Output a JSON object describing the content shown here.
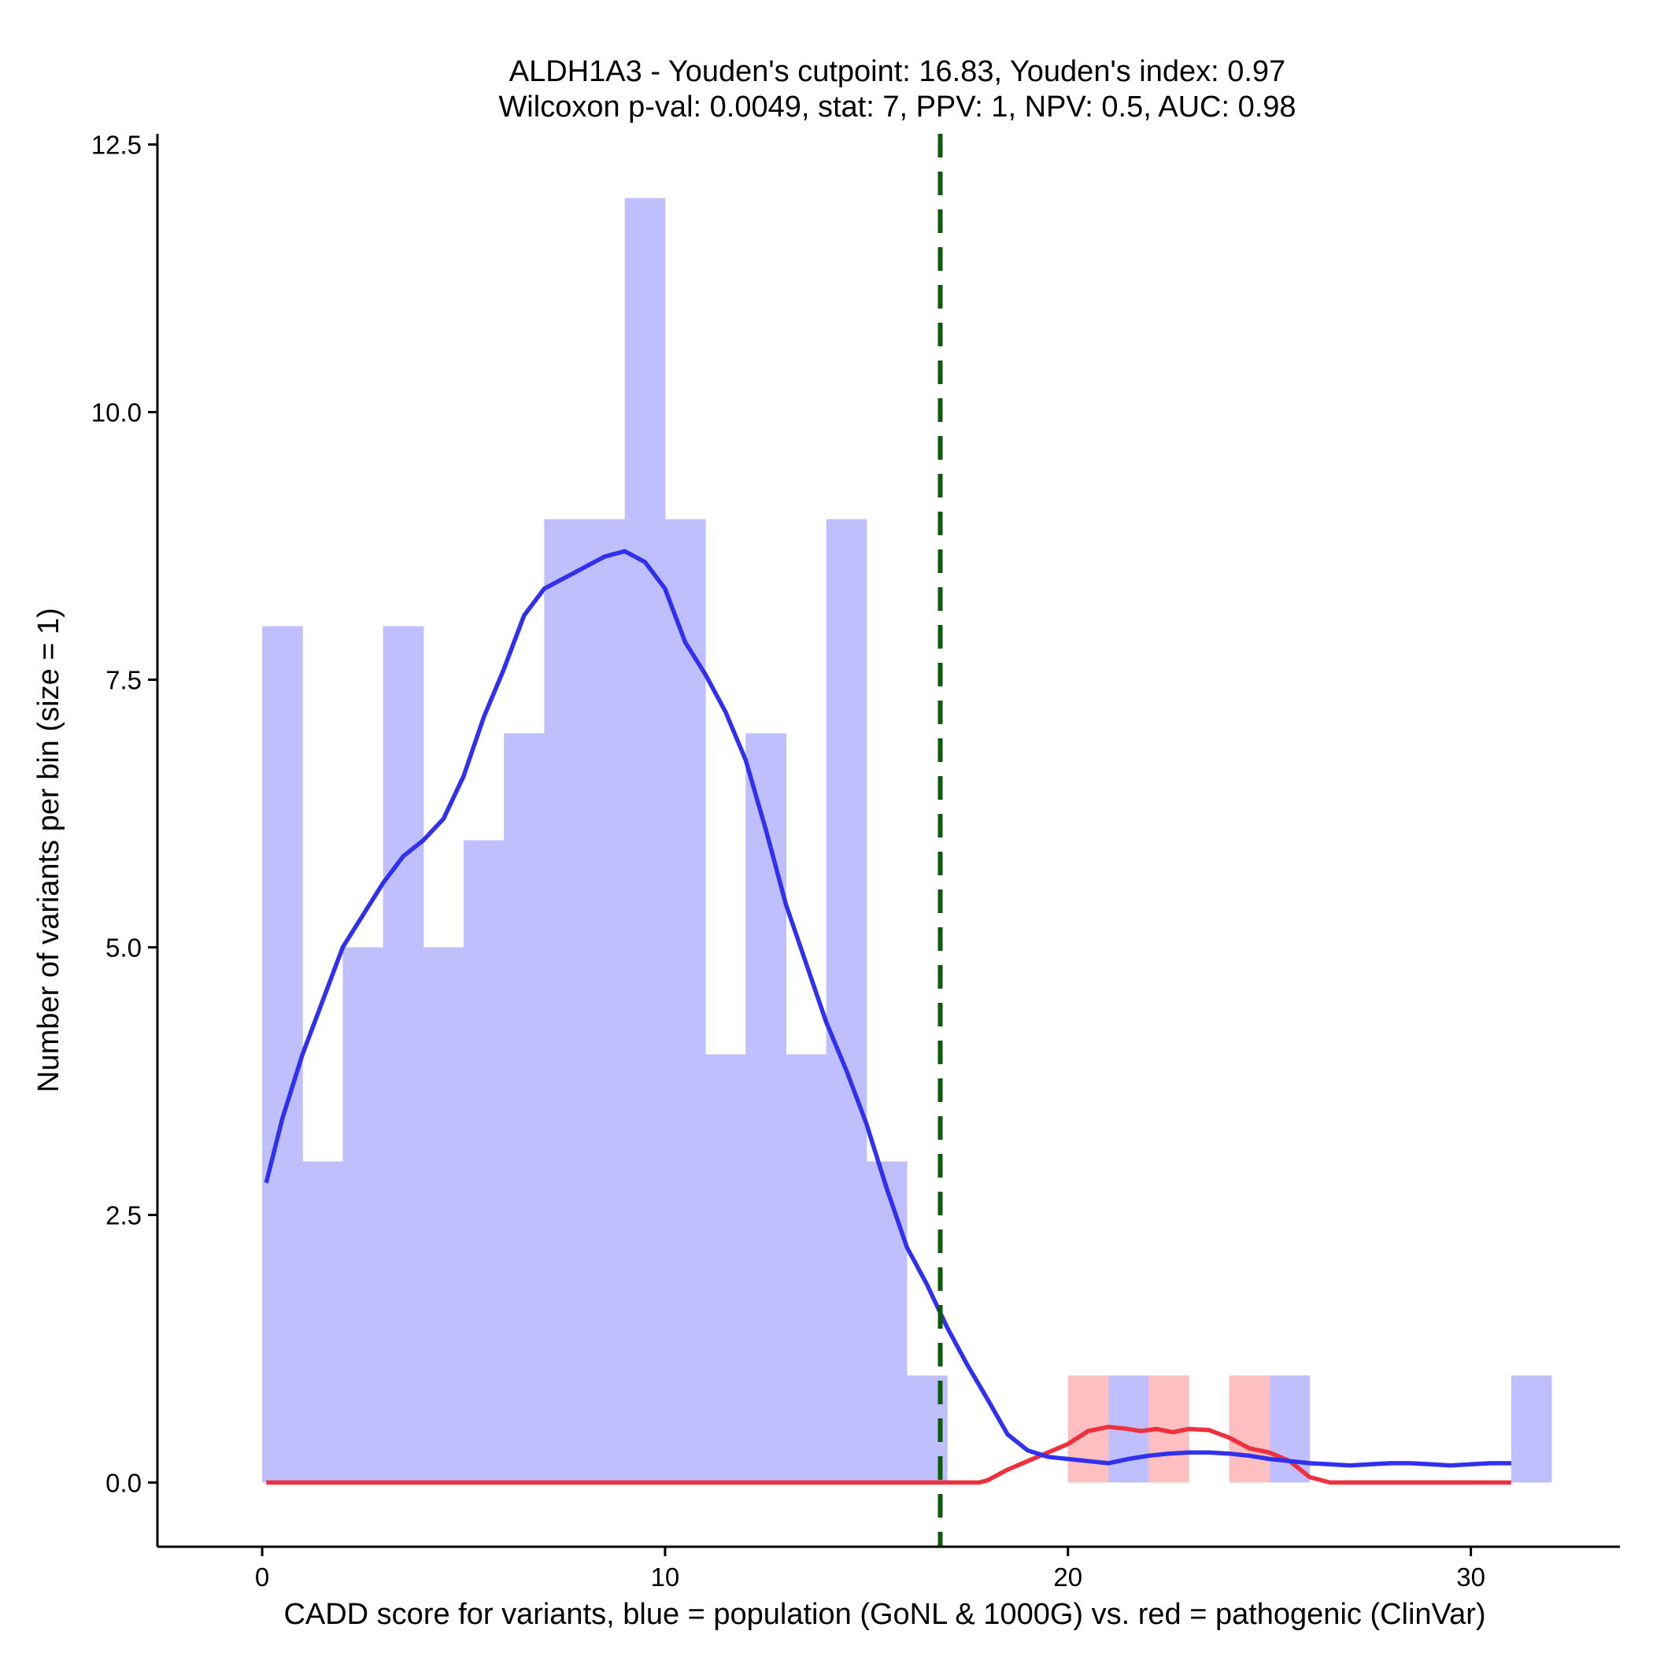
{
  "chart_data": {
    "type": "bar",
    "title_line1": "ALDH1A3 - Youden's cutpoint: 16.83, Youden's index: 0.97",
    "title_line2": "Wilcoxon p-val: 0.0049, stat: 7, PPV: 1, NPV: 0.5, AUC: 0.98",
    "xlabel": "CADD score for variants, blue = population (GoNL & 1000G) vs. red = pathogenic (ClinVar)",
    "ylabel": "Number of variants per bin (size = 1)",
    "xlim": [
      -2.6,
      33.7
    ],
    "ylim": [
      -0.6,
      12.6
    ],
    "x_ticks": [
      0,
      10,
      20,
      30
    ],
    "x_tick_labels": [
      "0",
      "10",
      "20",
      "30"
    ],
    "y_ticks": [
      0,
      2.5,
      5,
      7.5,
      10,
      12.5
    ],
    "y_tick_labels": [
      "0.0",
      "2.5",
      "5.0",
      "7.5",
      "10.0",
      "12.5"
    ],
    "bin_width": 1,
    "cutpoint": 16.83,
    "colors": {
      "population_bar": "#bfbffd",
      "pathogenic_bar": "#fdbfbf",
      "population_line": "#3030ee",
      "pathogenic_line": "#f0303c",
      "cutpoint_line": "#0b5b0b"
    },
    "series": [
      {
        "name": "population (GoNL & 1000G)",
        "bins": [
          [
            0,
            8
          ],
          [
            1,
            3
          ],
          [
            2,
            5
          ],
          [
            3,
            8
          ],
          [
            4,
            5
          ],
          [
            5,
            6
          ],
          [
            6,
            7
          ],
          [
            7,
            9
          ],
          [
            8,
            9
          ],
          [
            9,
            12
          ],
          [
            10,
            9
          ],
          [
            11,
            4
          ],
          [
            12,
            7
          ],
          [
            13,
            4
          ],
          [
            14,
            9
          ],
          [
            15,
            3
          ],
          [
            16,
            1
          ],
          [
            21,
            1
          ],
          [
            25,
            1
          ],
          [
            31,
            1
          ]
        ]
      },
      {
        "name": "pathogenic (ClinVar)",
        "bins": [
          [
            20,
            1
          ],
          [
            22,
            1
          ],
          [
            24,
            1
          ]
        ]
      }
    ],
    "density_population": [
      [
        0.1,
        2.8
      ],
      [
        0.5,
        3.4
      ],
      [
        1.0,
        4.0
      ],
      [
        1.5,
        4.5
      ],
      [
        2.0,
        5.0
      ],
      [
        2.5,
        5.3
      ],
      [
        3.0,
        5.6
      ],
      [
        3.5,
        5.85
      ],
      [
        4.0,
        6.0
      ],
      [
        4.5,
        6.2
      ],
      [
        5.0,
        6.6
      ],
      [
        5.5,
        7.15
      ],
      [
        6.0,
        7.6
      ],
      [
        6.5,
        8.1
      ],
      [
        7.0,
        8.35
      ],
      [
        7.5,
        8.45
      ],
      [
        8.0,
        8.55
      ],
      [
        8.5,
        8.65
      ],
      [
        9.0,
        8.7
      ],
      [
        9.5,
        8.6
      ],
      [
        10.0,
        8.35
      ],
      [
        10.5,
        7.85
      ],
      [
        11.0,
        7.55
      ],
      [
        11.5,
        7.2
      ],
      [
        12.0,
        6.75
      ],
      [
        12.5,
        6.1
      ],
      [
        13.0,
        5.4
      ],
      [
        13.5,
        4.85
      ],
      [
        14.0,
        4.3
      ],
      [
        14.5,
        3.85
      ],
      [
        15.0,
        3.35
      ],
      [
        15.5,
        2.75
      ],
      [
        16.0,
        2.2
      ],
      [
        16.5,
        1.85
      ],
      [
        17.0,
        1.45
      ],
      [
        17.5,
        1.1
      ],
      [
        18.0,
        0.78
      ],
      [
        18.5,
        0.45
      ],
      [
        19.0,
        0.3
      ],
      [
        19.5,
        0.24
      ],
      [
        20.0,
        0.22
      ],
      [
        20.5,
        0.2
      ],
      [
        21.0,
        0.18
      ],
      [
        21.5,
        0.22
      ],
      [
        22.0,
        0.25
      ],
      [
        22.5,
        0.27
      ],
      [
        23.0,
        0.28
      ],
      [
        23.5,
        0.28
      ],
      [
        24.0,
        0.27
      ],
      [
        24.5,
        0.25
      ],
      [
        25.0,
        0.22
      ],
      [
        25.5,
        0.2
      ],
      [
        26.0,
        0.18
      ],
      [
        26.5,
        0.17
      ],
      [
        27.0,
        0.16
      ],
      [
        27.5,
        0.17
      ],
      [
        28.0,
        0.18
      ],
      [
        28.5,
        0.18
      ],
      [
        29.0,
        0.17
      ],
      [
        29.5,
        0.16
      ],
      [
        30.0,
        0.17
      ],
      [
        30.5,
        0.18
      ],
      [
        31.0,
        0.18
      ]
    ],
    "density_pathogenic": [
      [
        0.1,
        0
      ],
      [
        17.8,
        0
      ],
      [
        18.0,
        0.02
      ],
      [
        18.5,
        0.12
      ],
      [
        19.0,
        0.2
      ],
      [
        19.5,
        0.28
      ],
      [
        20.0,
        0.36
      ],
      [
        20.5,
        0.48
      ],
      [
        21.0,
        0.52
      ],
      [
        21.5,
        0.5
      ],
      [
        21.8,
        0.48
      ],
      [
        22.2,
        0.5
      ],
      [
        22.6,
        0.47
      ],
      [
        23.0,
        0.5
      ],
      [
        23.5,
        0.49
      ],
      [
        24.0,
        0.42
      ],
      [
        24.5,
        0.32
      ],
      [
        25.0,
        0.28
      ],
      [
        25.5,
        0.2
      ],
      [
        26.0,
        0.05
      ],
      [
        26.5,
        0
      ],
      [
        31.0,
        0
      ]
    ]
  }
}
